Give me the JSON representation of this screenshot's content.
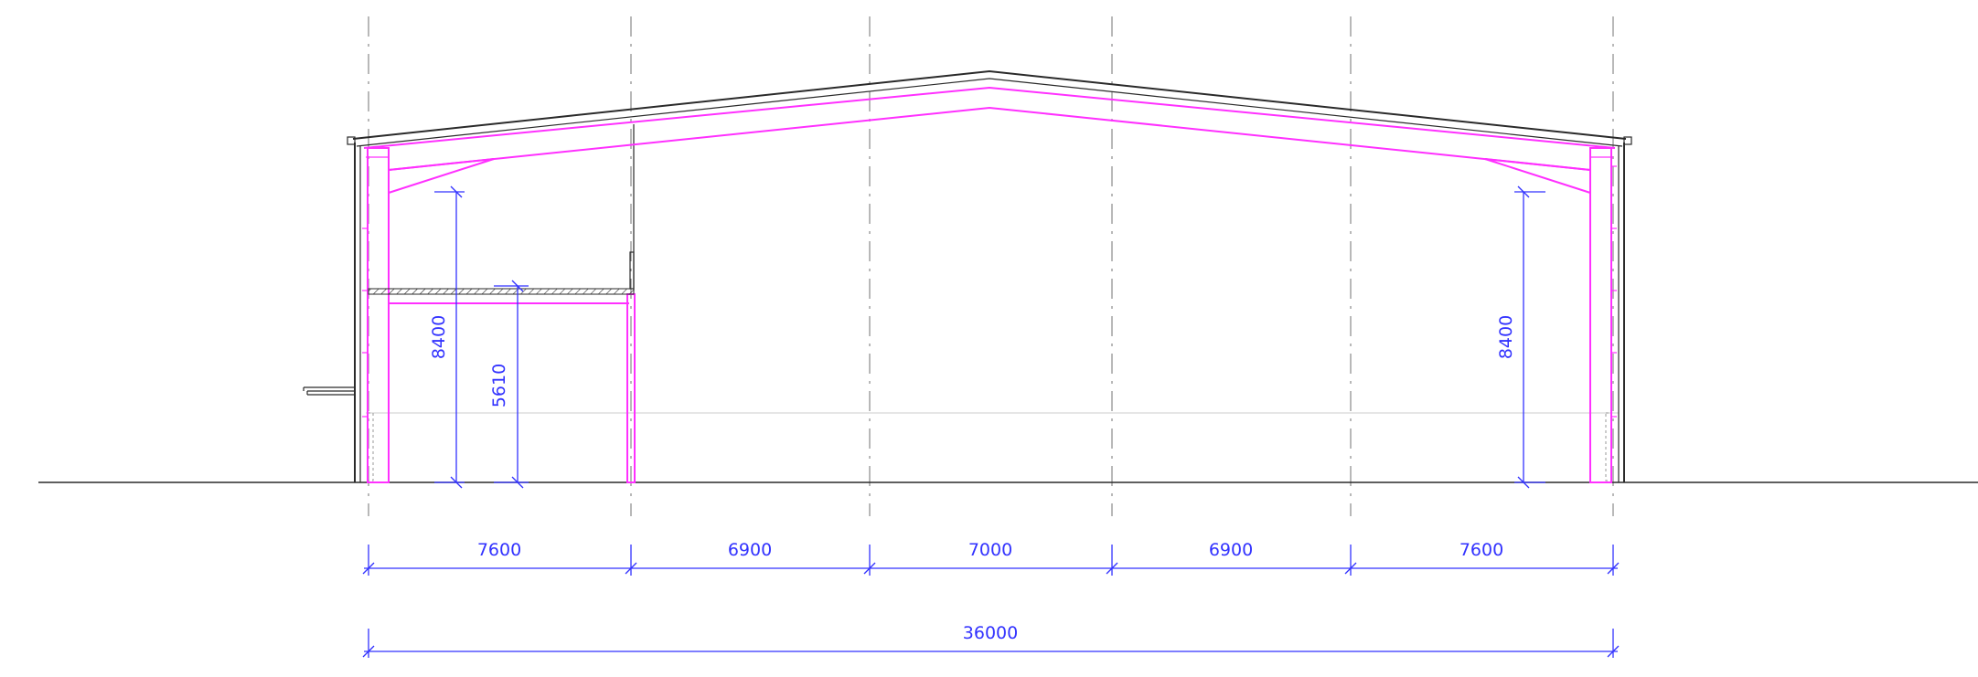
{
  "colors": {
    "structure": "#ff30ff",
    "outline": "#2a2a2a",
    "dimension": "#3232ff",
    "gridline": "#8a8a8a"
  },
  "dimensions": {
    "bays": [
      "7600",
      "6900",
      "7000",
      "6900",
      "7600"
    ],
    "overall": "36000",
    "height_left": "8400",
    "mezzanine_height": "5610",
    "height_right": "8400"
  }
}
